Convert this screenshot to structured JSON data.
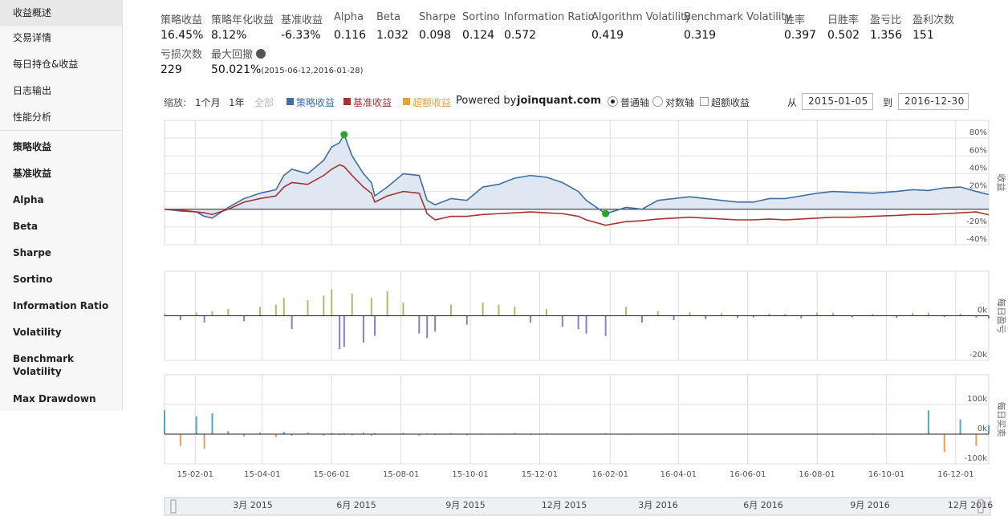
{
  "sidebar": {
    "active": 0,
    "items": [
      "收益概述",
      "交易详情",
      "每日持仓&收益",
      "日志输出",
      "性能分析",
      "策略收益",
      "基准收益",
      "Alpha",
      "Beta",
      "Sharpe",
      "Sortino",
      "Information Ratio",
      "Volatility",
      "Benchmark Volatility",
      "Max Drawdown"
    ]
  },
  "metrics": [
    {
      "label": "策略收益",
      "value": "16.45%"
    },
    {
      "label": "策略年化收益",
      "value": "8.12%"
    },
    {
      "label": "基准收益",
      "value": "-6.33%"
    },
    {
      "label": "Alpha",
      "value": "0.116"
    },
    {
      "label": "Beta",
      "value": "1.032"
    },
    {
      "label": "Sharpe",
      "value": "0.098"
    },
    {
      "label": "Sortino",
      "value": "0.124"
    },
    {
      "label": "Information Ratio",
      "value": "0.572"
    },
    {
      "label": "Algorithm Volatility",
      "value": "0.419"
    },
    {
      "label": "Benchmark Volatility",
      "value": "0.319"
    },
    {
      "label": "胜率",
      "value": "0.397"
    },
    {
      "label": "日胜率",
      "value": "0.502"
    },
    {
      "label": "盈亏比",
      "value": "1.356"
    },
    {
      "label": "盈利次数",
      "value": "151"
    },
    {
      "label": "亏损次数",
      "value": "229"
    },
    {
      "label": "最大回撤",
      "value": "50.021%",
      "note": "(2015-06-12,2016-01-28)"
    }
  ],
  "toolbar": {
    "zoom_label": "缩放:",
    "zoom_buttons": [
      "1个月",
      "1年",
      "全部"
    ],
    "powered_by": "Powered by",
    "site": "joinquant.com",
    "axis_options": [
      "普通轴",
      "对数轴"
    ],
    "excess_option": "超额收益",
    "from_label": "从",
    "to_label": "到"
  },
  "navigator": {
    "labels": [
      "3月 2015",
      "6月 2015",
      "9月 2015",
      "12月 2015",
      "3月 2016",
      "6月 2016",
      "9月 2016",
      "12月 2016"
    ]
  },
  "chart_data": [
    {
      "type": "line",
      "y_title": "收益",
      "xlim": [
        "2015-01-05",
        "2016-12-30"
      ],
      "xticks": [
        "2015-02-01",
        "2015-04-01",
        "2015-06-01",
        "2015-08-01",
        "2015-10-01",
        "2015-12-01",
        "2016-02-01",
        "2016-04-01",
        "2016-06-01",
        "2016-08-01",
        "2016-10-01",
        "2016-12-01"
      ],
      "ylim": [
        -40,
        100
      ],
      "yticks": [
        {
          "value": 80,
          "label": "80%"
        },
        {
          "value": 60,
          "label": "60%"
        },
        {
          "value": 40,
          "label": "40%"
        },
        {
          "value": 20,
          "label": "20%"
        },
        {
          "value": 0,
          "label": "0%"
        },
        {
          "value": -20,
          "label": "-20%"
        },
        {
          "value": -40,
          "label": "-40%"
        }
      ],
      "grid": true,
      "x": [
        "2015-01-05",
        "2015-01-19",
        "2015-02-02",
        "2015-02-09",
        "2015-02-16",
        "2015-03-02",
        "2015-03-16",
        "2015-03-30",
        "2015-04-13",
        "2015-04-20",
        "2015-04-27",
        "2015-05-11",
        "2015-05-25",
        "2015-06-01",
        "2015-06-08",
        "2015-06-12",
        "2015-06-19",
        "2015-06-29",
        "2015-07-06",
        "2015-07-09",
        "2015-07-20",
        "2015-08-03",
        "2015-08-17",
        "2015-08-24",
        "2015-08-31",
        "2015-09-14",
        "2015-09-28",
        "2015-10-12",
        "2015-10-26",
        "2015-11-09",
        "2015-11-23",
        "2015-12-07",
        "2015-12-21",
        "2016-01-04",
        "2016-01-11",
        "2016-01-28",
        "2016-02-15",
        "2016-02-29",
        "2016-03-14",
        "2016-03-28",
        "2016-04-11",
        "2016-04-25",
        "2016-05-09",
        "2016-05-23",
        "2016-06-06",
        "2016-06-20",
        "2016-07-04",
        "2016-07-18",
        "2016-08-01",
        "2016-08-15",
        "2016-09-01",
        "2016-09-19",
        "2016-10-10",
        "2016-10-24",
        "2016-11-07",
        "2016-11-21",
        "2016-12-05",
        "2016-12-19",
        "2016-12-30"
      ],
      "series": [
        {
          "name": "策略收益",
          "color": "#3d6ea5",
          "area": true,
          "area_color": "#dfe7f2",
          "visible": true,
          "values": [
            0,
            -2,
            -3,
            -8,
            -10,
            2,
            12,
            18,
            22,
            38,
            45,
            40,
            55,
            70,
            75,
            84,
            60,
            40,
            30,
            15,
            25,
            40,
            38,
            10,
            5,
            12,
            10,
            25,
            28,
            35,
            38,
            36,
            30,
            20,
            10,
            -5,
            2,
            0,
            10,
            12,
            14,
            12,
            10,
            8,
            8,
            12,
            12,
            15,
            18,
            20,
            19,
            18,
            20,
            22,
            21,
            24,
            25,
            20,
            16.45
          ]
        },
        {
          "name": "基准收益",
          "color": "#a83232",
          "visible": true,
          "values": [
            0,
            -1,
            -3,
            -4,
            -6,
            0,
            8,
            12,
            15,
            25,
            30,
            28,
            38,
            45,
            50,
            48,
            38,
            25,
            18,
            8,
            15,
            20,
            18,
            -5,
            -12,
            -8,
            -8,
            -6,
            -5,
            -4,
            -3,
            -4,
            -5,
            -8,
            -12,
            -18,
            -14,
            -13,
            -11,
            -10,
            -9,
            -10,
            -11,
            -12,
            -12,
            -11,
            -12,
            -11,
            -10,
            -9,
            -9,
            -8,
            -7,
            -6,
            -6,
            -5,
            -4,
            -3,
            -6.33
          ]
        },
        {
          "name": "超额收益",
          "color": "#f0a030",
          "visible": false,
          "values": [
            null,
            null,
            null,
            null,
            null,
            null,
            null,
            null,
            null,
            null,
            null,
            null,
            null,
            null,
            null,
            null,
            null,
            null,
            null,
            null,
            null,
            null,
            null,
            null,
            null,
            null,
            null,
            null,
            null,
            null,
            null,
            null,
            null,
            null,
            null,
            null,
            null,
            null,
            null,
            null,
            null,
            null,
            null,
            null,
            null,
            null,
            null,
            null,
            null,
            null,
            null,
            null,
            null,
            null,
            null,
            null,
            null,
            null,
            null
          ]
        }
      ],
      "markers": [
        {
          "x": "2015-06-12",
          "y": 84,
          "color": "#2aa52a"
        },
        {
          "x": "2016-01-28",
          "y": -5,
          "color": "#2aa52a"
        }
      ]
    },
    {
      "type": "bar",
      "y_title": "每日盈亏",
      "xlim": [
        "2015-01-05",
        "2016-12-30"
      ],
      "xticks": [
        "2015-02-01",
        "2015-04-01",
        "2015-06-01",
        "2015-08-01",
        "2015-10-01",
        "2015-12-01",
        "2016-02-01",
        "2016-04-01",
        "2016-06-01",
        "2016-08-01",
        "2016-10-01",
        "2016-12-01"
      ],
      "ylim": [
        -20000,
        20000
      ],
      "yticks": [
        {
          "value": 0,
          "label": "0k"
        },
        {
          "value": -20000,
          "label": "-20k"
        }
      ],
      "grid": true,
      "positive_color": "#b3bb62",
      "negative_color": "#8e7cc3",
      "x": [
        "2015-01-05",
        "2015-01-19",
        "2015-02-02",
        "2015-02-09",
        "2015-02-16",
        "2015-03-02",
        "2015-03-16",
        "2015-03-30",
        "2015-04-13",
        "2015-04-20",
        "2015-04-27",
        "2015-05-11",
        "2015-05-25",
        "2015-06-01",
        "2015-06-08",
        "2015-06-12",
        "2015-06-19",
        "2015-06-29",
        "2015-07-06",
        "2015-07-09",
        "2015-07-20",
        "2015-08-03",
        "2015-08-17",
        "2015-08-24",
        "2015-08-31",
        "2015-09-14",
        "2015-09-28",
        "2015-10-12",
        "2015-10-26",
        "2015-11-09",
        "2015-11-23",
        "2015-12-07",
        "2015-12-21",
        "2016-01-04",
        "2016-01-11",
        "2016-01-28",
        "2016-02-15",
        "2016-02-29",
        "2016-03-14",
        "2016-03-28",
        "2016-04-11",
        "2016-04-25",
        "2016-05-09",
        "2016-05-23",
        "2016-06-06",
        "2016-06-20",
        "2016-07-04",
        "2016-07-18",
        "2016-08-01",
        "2016-08-15",
        "2016-09-01",
        "2016-09-19",
        "2016-10-10",
        "2016-10-24",
        "2016-11-07",
        "2016-11-21",
        "2016-12-05",
        "2016-12-19",
        "2016-12-30"
      ],
      "values": [
        1000,
        -2000,
        1500,
        -3000,
        2000,
        3000,
        -2500,
        4000,
        5000,
        8000,
        -6000,
        7000,
        9000,
        12000,
        -15000,
        -14000,
        10000,
        -12000,
        8000,
        -9000,
        11000,
        6000,
        -8000,
        -10000,
        -7000,
        5000,
        -4000,
        6000,
        5000,
        4000,
        -3000,
        3000,
        -5000,
        -6000,
        -8000,
        -9000,
        4000,
        -3000,
        2000,
        -2000,
        1500,
        -1500,
        1200,
        -1000,
        -800,
        1000,
        900,
        -1200,
        1500,
        1300,
        -700,
        800,
        -900,
        1200,
        1400,
        -600,
        1000,
        -800,
        -1200
      ]
    },
    {
      "type": "bar",
      "y_title": "每日买卖",
      "xlim": [
        "2015-01-05",
        "2016-12-30"
      ],
      "xticks": [
        {
          "value": "2015-02-01",
          "label": "15-02-01"
        },
        {
          "value": "2015-04-01",
          "label": "15-04-01"
        },
        {
          "value": "2015-06-01",
          "label": "15-06-01"
        },
        {
          "value": "2015-08-01",
          "label": "15-08-01"
        },
        {
          "value": "2015-10-01",
          "label": "15-10-01"
        },
        {
          "value": "2015-12-01",
          "label": "15-12-01"
        },
        {
          "value": "2016-02-01",
          "label": "16-02-01"
        },
        {
          "value": "2016-04-01",
          "label": "16-04-01"
        },
        {
          "value": "2016-06-01",
          "label": "16-06-01"
        },
        {
          "value": "2016-08-01",
          "label": "16-08-01"
        },
        {
          "value": "2016-10-01",
          "label": "16-10-01"
        },
        {
          "value": "2016-12-01",
          "label": "16-12-01"
        }
      ],
      "ylim": [
        -100000,
        200000
      ],
      "yticks": [
        {
          "value": 100000,
          "label": "100k"
        },
        {
          "value": 0,
          "label": "0k"
        },
        {
          "value": -100000,
          "label": "-100k"
        }
      ],
      "grid": true,
      "positive_color": "#4fa8c8",
      "negative_color": "#e4a05a",
      "x": [
        "2015-01-05",
        "2015-01-19",
        "2015-02-02",
        "2015-02-09",
        "2015-02-16",
        "2015-03-02",
        "2015-03-16",
        "2015-03-30",
        "2015-04-13",
        "2015-04-20",
        "2015-04-27",
        "2015-05-11",
        "2015-05-25",
        "2015-06-01",
        "2015-06-08",
        "2015-06-12",
        "2015-06-19",
        "2015-06-29",
        "2015-07-06",
        "2015-07-09",
        "2015-07-20",
        "2015-08-03",
        "2015-08-17",
        "2015-08-24",
        "2015-08-31",
        "2015-09-14",
        "2015-09-28",
        "2015-10-12",
        "2015-10-26",
        "2015-11-09",
        "2015-11-23",
        "2015-12-07",
        "2015-12-21",
        "2016-01-04",
        "2016-01-11",
        "2016-01-28",
        "2016-02-15",
        "2016-02-29",
        "2016-03-14",
        "2016-03-28",
        "2016-04-11",
        "2016-04-25",
        "2016-05-09",
        "2016-05-23",
        "2016-06-06",
        "2016-06-20",
        "2016-07-04",
        "2016-07-18",
        "2016-08-01",
        "2016-08-15",
        "2016-09-01",
        "2016-09-19",
        "2016-10-10",
        "2016-10-24",
        "2016-11-07",
        "2016-11-21",
        "2016-12-05",
        "2016-12-19",
        "2016-12-30"
      ],
      "values": [
        80000,
        -40000,
        60000,
        -50000,
        70000,
        10000,
        -8000,
        5000,
        -10000,
        8000,
        -6000,
        5000,
        -5000,
        4000,
        -3000,
        3000,
        -4000,
        5000,
        -6000,
        3000,
        -2000,
        4000,
        -5000,
        2000,
        -3000,
        3000,
        -4000,
        2000,
        -2000,
        3000,
        -3000,
        2000,
        -1500,
        1500,
        -2000,
        2500,
        -2000,
        1500,
        -1500,
        2000,
        -1000,
        1500,
        -1500,
        1000,
        -1000,
        1500,
        -1000,
        1000,
        -1500,
        1000,
        -1000,
        2000,
        -1500,
        1500,
        80000,
        -60000,
        50000,
        -40000,
        30000
      ]
    }
  ]
}
